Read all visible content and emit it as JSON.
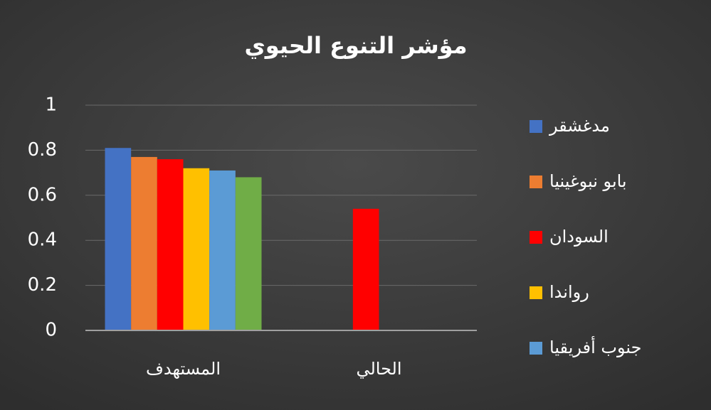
{
  "chart_data": {
    "type": "bar",
    "title": "مؤشر التنوع الحيوي",
    "categories": [
      "المستهدف",
      "الحالي"
    ],
    "series": [
      {
        "name": "مدغشقر",
        "color": "#4472c4",
        "values": [
          0.81,
          null
        ]
      },
      {
        "name": "بابو نبوغينيا",
        "color": "#ed7d31",
        "values": [
          0.77,
          null
        ]
      },
      {
        "name": "السودان",
        "color": "#ff0000",
        "values": [
          0.76,
          0.54
        ]
      },
      {
        "name": "رواندا",
        "color": "#ffc000",
        "values": [
          0.72,
          null
        ]
      },
      {
        "name": "جنوب أفريقيا",
        "color": "#5b9bd5",
        "values": [
          0.71,
          null
        ]
      },
      {
        "color": "#70ad47",
        "values": [
          0.68,
          null
        ]
      }
    ],
    "ylim": [
      0,
      1
    ],
    "yticks": [
      0,
      0.2,
      0.4,
      0.6,
      0.8,
      1
    ],
    "grid": true,
    "legend": "right"
  }
}
